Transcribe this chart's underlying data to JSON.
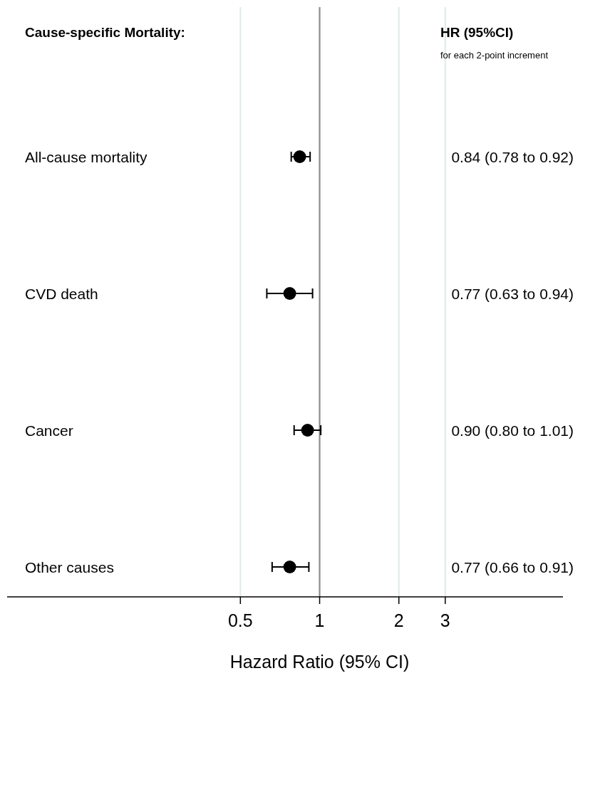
{
  "chart_data": {
    "type": "scatter",
    "orientation": "horizontal",
    "title": "Cause-specific Mortality:",
    "xlabel": "Hazard Ratio (95% CI)",
    "annotations": [
      "HR (95%CI)",
      "for each 2-point increment",
      "0.84 (0.78 to 0.92)",
      "0.77 (0.63 to 0.94)",
      "0.90 (0.80 to 1.01)",
      "0.77 (0.66 to 0.91)"
    ],
    "categories": [
      "All-cause mortality",
      "CVD death",
      "Cancer",
      "Other causes"
    ],
    "series": [
      {
        "color": "#000000",
        "values": [
          0.84,
          0.77,
          0.9,
          0.77
        ],
        "errors": [
          [
            0.78,
            0.92
          ],
          [
            0.63,
            0.94
          ],
          [
            0.8,
            1.01
          ],
          [
            0.66,
            0.91
          ]
        ]
      }
    ],
    "log": "x",
    "xlim": [
      0.065,
      8.4
    ],
    "xticks": [
      0.5,
      1,
      2,
      3
    ],
    "grid": "x",
    "marker": "circle",
    "ref_lines": [
      {
        "axis": "x",
        "value": 1,
        "color": "#888888"
      }
    ]
  }
}
